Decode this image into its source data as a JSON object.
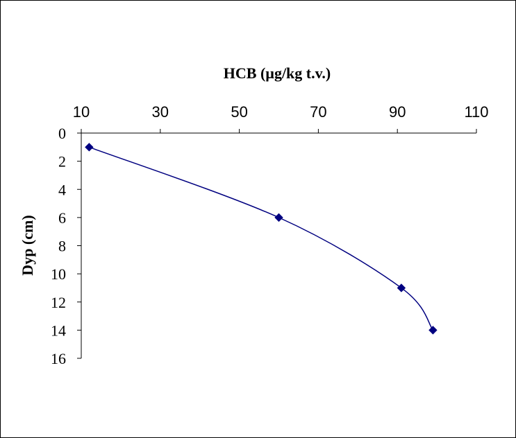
{
  "chart_data": {
    "type": "line",
    "xlabel": "HCB (µg/kg t.v.)",
    "ylabel": "Dyp (cm)",
    "x_axis_position": "top",
    "y_axis_inverted": true,
    "xlim": [
      10,
      110
    ],
    "ylim": [
      0,
      16
    ],
    "x_ticks": [
      "10",
      "30",
      "50",
      "70",
      "90",
      "110"
    ],
    "y_ticks": [
      "0",
      "2",
      "4",
      "6",
      "8",
      "10",
      "12",
      "14",
      "16"
    ],
    "smooth_line": true,
    "grid": false,
    "series": [
      {
        "color": "#000080",
        "marker": "diamond",
        "points": [
          {
            "x": 12,
            "y": 1
          },
          {
            "x": 60,
            "y": 6
          },
          {
            "x": 91,
            "y": 11
          },
          {
            "x": 99,
            "y": 14
          }
        ]
      }
    ]
  }
}
